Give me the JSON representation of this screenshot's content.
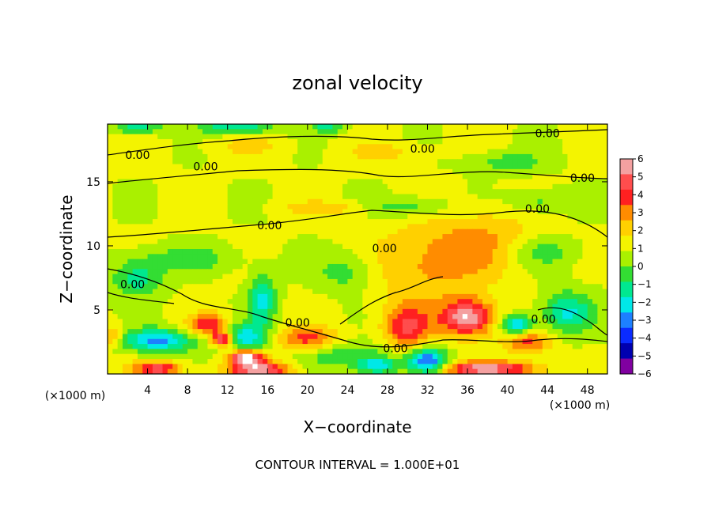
{
  "chart_data": {
    "type": "heatmap",
    "title": "zonal velocity",
    "xlabel": "X−coordinate",
    "ylabel": "Z−coordinate",
    "x_unit_left": "(×1000 m)",
    "x_unit_right": "(×1000 m)",
    "footer": "CONTOUR INTERVAL = 1.000E+01",
    "xlim": [
      0,
      50
    ],
    "ylim": [
      0,
      19.5
    ],
    "x_ticks": [
      4,
      8,
      12,
      16,
      20,
      24,
      28,
      32,
      36,
      40,
      44,
      48
    ],
    "y_ticks": [
      5,
      10,
      15
    ],
    "colorbar": {
      "min": -6,
      "max": 6,
      "ticks": [
        6,
        5,
        4,
        3,
        2,
        1,
        0,
        -1,
        -2,
        -3,
        -4,
        -5,
        -6
      ],
      "tick_labels": [
        "6",
        "5",
        "4",
        "3",
        "2",
        "1",
        "0",
        "−1",
        "−2",
        "−3",
        "−4",
        "−5",
        "−6"
      ],
      "colors": [
        "#f4a0a0",
        "#ff4d4d",
        "#ff2020",
        "#ff8c00",
        "#ffd000",
        "#f4f400",
        "#aaf000",
        "#33dd33",
        "#00e890",
        "#00e8e8",
        "#1d80ff",
        "#0a2bff",
        "#0000b0",
        "#8000a0"
      ]
    },
    "contour_labels": [
      {
        "text": "0.00",
        "x": 3.0,
        "y": 17.1
      },
      {
        "text": "0.00",
        "x": 9.8,
        "y": 16.2
      },
      {
        "text": "0.00",
        "x": 31.5,
        "y": 17.6
      },
      {
        "text": "0.00",
        "x": 44.0,
        "y": 18.8
      },
      {
        "text": "0.00",
        "x": 47.5,
        "y": 15.3
      },
      {
        "text": "0.00",
        "x": 43.0,
        "y": 12.9
      },
      {
        "text": "0.00",
        "x": 16.2,
        "y": 11.6
      },
      {
        "text": "0.00",
        "x": 27.7,
        "y": 9.8
      },
      {
        "text": "0.00",
        "x": 2.5,
        "y": 7.0
      },
      {
        "text": "0.00",
        "x": 19.0,
        "y": 4.0
      },
      {
        "text": "0.00",
        "x": 28.8,
        "y": 2.0
      },
      {
        "text": "0.00",
        "x": 43.6,
        "y": 4.3
      }
    ],
    "features": [
      {
        "v": -4.0,
        "x": 5.0,
        "y": 2.6,
        "sx": 3.6,
        "sy": 0.9
      },
      {
        "v": -3.5,
        "x": 13.5,
        "y": 2.8,
        "sx": 2.6,
        "sy": 1.1
      },
      {
        "v": -3.0,
        "x": 15.5,
        "y": 5.8,
        "sx": 1.3,
        "sy": 2.0
      },
      {
        "v": 3.5,
        "x": 10.2,
        "y": 3.8,
        "sx": 2.0,
        "sy": 0.9
      },
      {
        "v": 6.0,
        "x": 11.5,
        "y": 2.7,
        "sx": 1.1,
        "sy": 0.6
      },
      {
        "v": 6.0,
        "x": 13.8,
        "y": 1.3,
        "sx": 1.7,
        "sy": 0.6
      },
      {
        "v": 5.0,
        "x": 15.2,
        "y": 0.3,
        "sx": 3.0,
        "sy": 0.7
      },
      {
        "v": 4.0,
        "x": 5.0,
        "y": 0.4,
        "sx": 2.5,
        "sy": 0.6
      },
      {
        "v": 3.0,
        "x": 20.0,
        "y": 2.7,
        "sx": 3.2,
        "sy": 1.0
      },
      {
        "v": -2.0,
        "x": 24.0,
        "y": 1.5,
        "sx": 4.5,
        "sy": 1.0
      },
      {
        "v": 3.5,
        "x": 30.0,
        "y": 3.6,
        "sx": 2.4,
        "sy": 1.8
      },
      {
        "v": 5.5,
        "x": 36.0,
        "y": 4.4,
        "sx": 2.6,
        "sy": 1.4
      },
      {
        "v": -5.0,
        "x": 32.0,
        "y": 1.0,
        "sx": 2.0,
        "sy": 1.0
      },
      {
        "v": -3.5,
        "x": 27.0,
        "y": 0.6,
        "sx": 2.0,
        "sy": 0.6
      },
      {
        "v": -4.0,
        "x": 41.0,
        "y": 3.8,
        "sx": 1.6,
        "sy": 0.8
      },
      {
        "v": 3.0,
        "x": 42.0,
        "y": 2.5,
        "sx": 2.4,
        "sy": 0.9
      },
      {
        "v": 5.0,
        "x": 38.0,
        "y": 0.4,
        "sx": 5.0,
        "sy": 0.6
      },
      {
        "v": -3.0,
        "x": 46.0,
        "y": 4.8,
        "sx": 2.5,
        "sy": 1.6
      },
      {
        "v": 2.0,
        "x": 32.0,
        "y": 8.5,
        "sx": 6.0,
        "sy": 3.2
      },
      {
        "v": 1.5,
        "x": 38.0,
        "y": 10.5,
        "sx": 5.0,
        "sy": 2.5
      },
      {
        "v": -1.8,
        "x": 30.0,
        "y": 13.0,
        "sx": 4.0,
        "sy": 0.8
      },
      {
        "v": -1.5,
        "x": 43.0,
        "y": 13.5,
        "sx": 3.0,
        "sy": 0.9
      },
      {
        "v": 1.4,
        "x": 22.0,
        "y": 12.9,
        "sx": 4.5,
        "sy": 0.6
      },
      {
        "v": -2.5,
        "x": 3.0,
        "y": 7.5,
        "sx": 2.5,
        "sy": 1.4
      },
      {
        "v": -1.5,
        "x": 8.0,
        "y": 9.0,
        "sx": 5.0,
        "sy": 1.0
      },
      {
        "v": -1.7,
        "x": 24.0,
        "y": 8.0,
        "sx": 3.0,
        "sy": 1.6
      },
      {
        "v": -1.5,
        "x": 43.5,
        "y": 9.5,
        "sx": 3.5,
        "sy": 1.2
      },
      {
        "v": 1.2,
        "x": 28.0,
        "y": 17.3,
        "sx": 4.0,
        "sy": 0.8
      },
      {
        "v": 1.0,
        "x": 14.0,
        "y": 17.8,
        "sx": 4.0,
        "sy": 0.8
      },
      {
        "v": -3.0,
        "x": 13.0,
        "y": 19.2,
        "sx": 3.5,
        "sy": 0.5
      },
      {
        "v": -2.5,
        "x": 3.0,
        "y": 19.2,
        "sx": 2.5,
        "sy": 0.5
      },
      {
        "v": -2.5,
        "x": 22.0,
        "y": 19.2,
        "sx": 1.5,
        "sy": 0.4
      },
      {
        "v": 2.5,
        "x": 0.6,
        "y": 3.0,
        "sx": 1.0,
        "sy": 0.8
      },
      {
        "v": -1.5,
        "x": 40.0,
        "y": 16.5,
        "sx": 4.0,
        "sy": 0.8
      }
    ]
  }
}
